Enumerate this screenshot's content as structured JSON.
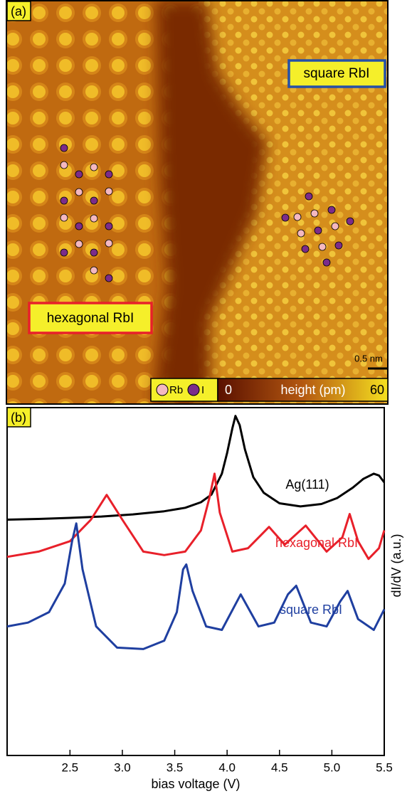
{
  "panel_a": {
    "label": "(a)",
    "regions": [
      "square RbI",
      "hexagonal RbI"
    ],
    "legend": [
      "Rb",
      "I"
    ],
    "colorbar": {
      "min": "0",
      "label": "height (pm)",
      "max": "60"
    },
    "scale_bar": "0.5 nm"
  },
  "chart_data": {
    "type": "line",
    "panel_label": "(b)",
    "x_label": "bias voltage (V)",
    "y_label": "dI/dV (a.u.)",
    "xlim": [
      1.9,
      5.5
    ],
    "xticks": [
      2.5,
      {
        "value": 3,
        "label": "3.0"
      },
      3.5,
      {
        "value": 4,
        "label": "4.0"
      },
      4.5,
      {
        "value": 5,
        "label": "5.0"
      },
      5.5
    ],
    "ylim": [
      0,
      100
    ],
    "series": [
      {
        "name": "Ag(111)",
        "color": "#000000",
        "x": [
          1.9,
          2.2,
          2.5,
          2.8,
          3.1,
          3.4,
          3.6,
          3.75,
          3.85,
          3.95,
          4.0,
          4.05,
          4.08,
          4.12,
          4.17,
          4.25,
          4.35,
          4.5,
          4.7,
          4.9,
          5.05,
          5.2,
          5.3,
          5.4,
          5.45,
          5.5
        ],
        "values": [
          67.8,
          68,
          68.3,
          68.7,
          69.3,
          70.2,
          71.2,
          72.8,
          75,
          81,
          87,
          94,
          97.6,
          95,
          88,
          80,
          75.5,
          72.5,
          71.6,
          72.3,
          74,
          77,
          79.5,
          81,
          80.5,
          78.5
        ]
      },
      {
        "name": "hexagonal RbI",
        "color": "#e8202a",
        "x": [
          1.9,
          2.2,
          2.5,
          2.7,
          2.85,
          3.0,
          3.2,
          3.4,
          3.6,
          3.75,
          3.83,
          3.88,
          3.93,
          4.05,
          4.2,
          4.4,
          4.55,
          4.75,
          4.95,
          5.1,
          5.17,
          5.25,
          5.35,
          5.45,
          5.5
        ],
        "values": [
          57.1,
          58.6,
          61.6,
          67.8,
          74.9,
          67.8,
          58.6,
          57.6,
          58.6,
          64.7,
          73.9,
          81,
          69.8,
          58.6,
          59.6,
          65.7,
          60.6,
          66.1,
          58.6,
          62.7,
          69.4,
          61.6,
          56.5,
          59.6,
          64.7
        ]
      },
      {
        "name": "square RbI",
        "color": "#1f3fa0",
        "x": [
          1.9,
          2.1,
          2.3,
          2.45,
          2.52,
          2.56,
          2.62,
          2.75,
          2.95,
          3.2,
          3.4,
          3.52,
          3.58,
          3.61,
          3.67,
          3.8,
          3.95,
          4.13,
          4.3,
          4.45,
          4.58,
          4.66,
          4.8,
          4.95,
          5.08,
          5.15,
          5.25,
          5.4,
          5.5
        ],
        "values": [
          37.1,
          38.2,
          41.2,
          49.4,
          61.6,
          66.7,
          53.5,
          37.1,
          31,
          30.6,
          33,
          41.2,
          53.5,
          54.9,
          47.3,
          37.1,
          36.1,
          46.3,
          37.1,
          38.2,
          46.3,
          48.8,
          38.2,
          37.1,
          44.3,
          47.3,
          39.2,
          36.1,
          42
        ]
      }
    ]
  }
}
